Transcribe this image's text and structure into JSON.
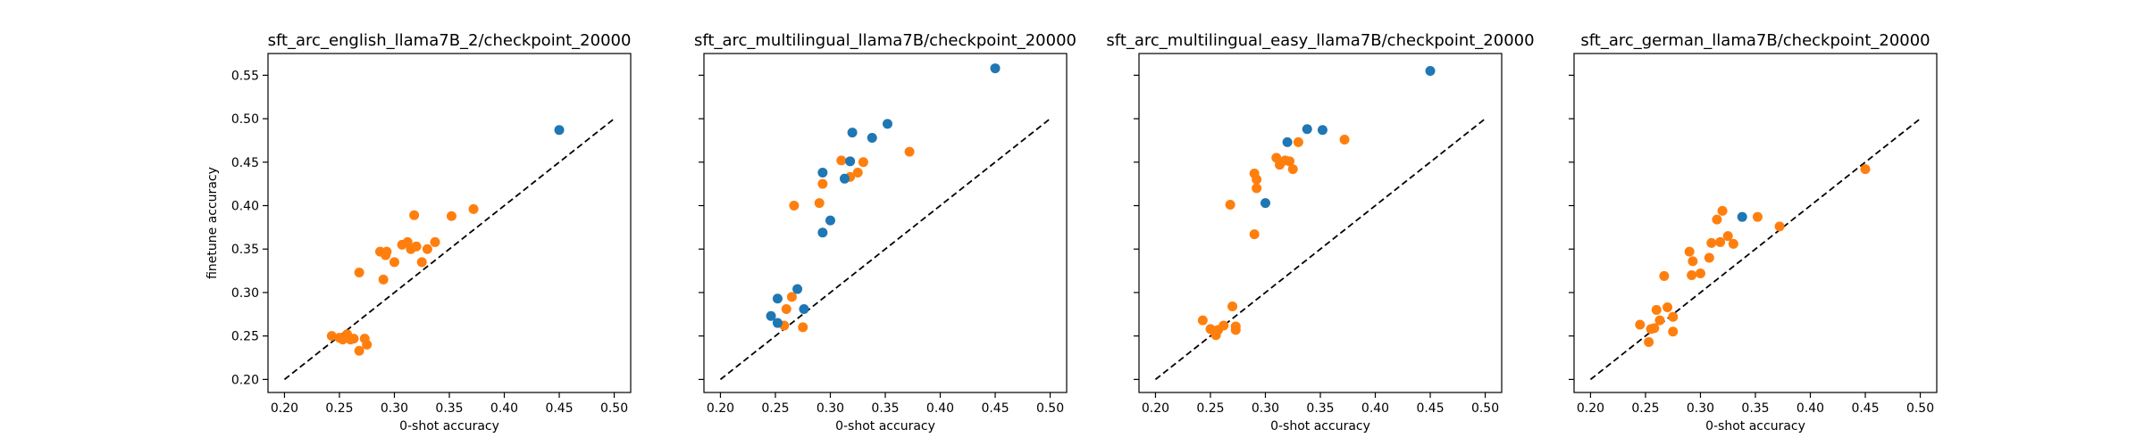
{
  "chart_data": [
    {
      "type": "scatter",
      "title": "sft_arc_english_llama7B_2/checkpoint_20000",
      "xlabel": "0-shot accuracy",
      "ylabel": "finetune accuracy",
      "xlim": [
        0.185,
        0.515
      ],
      "ylim": [
        0.185,
        0.575
      ],
      "xticks": [
        "0.20",
        "0.25",
        "0.30",
        "0.35",
        "0.40",
        "0.45",
        "0.50"
      ],
      "yticks": [
        "0.20",
        "0.25",
        "0.30",
        "0.35",
        "0.40",
        "0.45",
        "0.50",
        "0.55"
      ],
      "reference_line": [
        [
          0.2,
          0.2
        ],
        [
          0.5,
          0.5
        ]
      ],
      "series": [
        {
          "color": "#1f77b4",
          "points": [
            [
              0.45,
              0.487
            ]
          ]
        },
        {
          "color": "#ff7f0e",
          "points": [
            [
              0.243,
              0.25
            ],
            [
              0.25,
              0.248
            ],
            [
              0.253,
              0.246
            ],
            [
              0.257,
              0.252
            ],
            [
              0.26,
              0.246
            ],
            [
              0.263,
              0.247
            ],
            [
              0.268,
              0.323
            ],
            [
              0.268,
              0.233
            ],
            [
              0.273,
              0.247
            ],
            [
              0.275,
              0.24
            ],
            [
              0.287,
              0.347
            ],
            [
              0.29,
              0.315
            ],
            [
              0.292,
              0.343
            ],
            [
              0.293,
              0.347
            ],
            [
              0.3,
              0.335
            ],
            [
              0.307,
              0.355
            ],
            [
              0.312,
              0.358
            ],
            [
              0.315,
              0.35
            ],
            [
              0.318,
              0.389
            ],
            [
              0.32,
              0.353
            ],
            [
              0.325,
              0.335
            ],
            [
              0.33,
              0.35
            ],
            [
              0.337,
              0.358
            ],
            [
              0.352,
              0.388
            ],
            [
              0.372,
              0.396
            ]
          ]
        }
      ]
    },
    {
      "type": "scatter",
      "title": "sft_arc_multilingual_llama7B/checkpoint_20000",
      "xlabel": "0-shot accuracy",
      "ylabel": "",
      "xlim": [
        0.185,
        0.515
      ],
      "ylim": [
        0.185,
        0.575
      ],
      "xticks": [
        "0.20",
        "0.25",
        "0.30",
        "0.35",
        "0.40",
        "0.45",
        "0.50"
      ],
      "yticks": [
        "0.20",
        "0.25",
        "0.30",
        "0.35",
        "0.40",
        "0.45",
        "0.50",
        "0.55"
      ],
      "reference_line": [
        [
          0.2,
          0.2
        ],
        [
          0.5,
          0.5
        ]
      ],
      "series": [
        {
          "color": "#1f77b4",
          "points": [
            [
              0.45,
              0.558
            ],
            [
              0.352,
              0.494
            ],
            [
              0.338,
              0.478
            ],
            [
              0.32,
              0.484
            ],
            [
              0.318,
              0.451
            ],
            [
              0.313,
              0.431
            ],
            [
              0.3,
              0.383
            ],
            [
              0.293,
              0.369
            ],
            [
              0.293,
              0.438
            ],
            [
              0.276,
              0.281
            ],
            [
              0.27,
              0.304
            ],
            [
              0.252,
              0.293
            ],
            [
              0.246,
              0.273
            ],
            [
              0.252,
              0.265
            ]
          ]
        },
        {
          "color": "#ff7f0e",
          "points": [
            [
              0.372,
              0.462
            ],
            [
              0.33,
              0.45
            ],
            [
              0.325,
              0.438
            ],
            [
              0.318,
              0.433
            ],
            [
              0.31,
              0.452
            ],
            [
              0.293,
              0.425
            ],
            [
              0.29,
              0.403
            ],
            [
              0.267,
              0.4
            ],
            [
              0.265,
              0.295
            ],
            [
              0.26,
              0.281
            ],
            [
              0.258,
              0.262
            ],
            [
              0.275,
              0.26
            ]
          ]
        }
      ]
    },
    {
      "type": "scatter",
      "title": "sft_arc_multilingual_easy_llama7B/checkpoint_20000",
      "xlabel": "0-shot accuracy",
      "ylabel": "",
      "xlim": [
        0.185,
        0.515
      ],
      "ylim": [
        0.185,
        0.575
      ],
      "xticks": [
        "0.20",
        "0.25",
        "0.30",
        "0.35",
        "0.40",
        "0.45",
        "0.50"
      ],
      "yticks": [
        "0.20",
        "0.25",
        "0.30",
        "0.35",
        "0.40",
        "0.45",
        "0.50",
        "0.55"
      ],
      "reference_line": [
        [
          0.2,
          0.2
        ],
        [
          0.5,
          0.5
        ]
      ],
      "series": [
        {
          "color": "#1f77b4",
          "points": [
            [
              0.45,
              0.555
            ],
            [
              0.352,
              0.487
            ],
            [
              0.338,
              0.488
            ],
            [
              0.32,
              0.473
            ],
            [
              0.3,
              0.403
            ]
          ]
        },
        {
          "color": "#ff7f0e",
          "points": [
            [
              0.372,
              0.476
            ],
            [
              0.33,
              0.473
            ],
            [
              0.325,
              0.442
            ],
            [
              0.322,
              0.451
            ],
            [
              0.318,
              0.452
            ],
            [
              0.313,
              0.447
            ],
            [
              0.31,
              0.455
            ],
            [
              0.29,
              0.437
            ],
            [
              0.292,
              0.43
            ],
            [
              0.292,
              0.42
            ],
            [
              0.29,
              0.367
            ],
            [
              0.268,
              0.401
            ],
            [
              0.27,
              0.284
            ],
            [
              0.273,
              0.261
            ],
            [
              0.273,
              0.257
            ],
            [
              0.262,
              0.262
            ],
            [
              0.257,
              0.257
            ],
            [
              0.253,
              0.256
            ],
            [
              0.255,
              0.251
            ],
            [
              0.25,
              0.258
            ],
            [
              0.243,
              0.268
            ]
          ]
        }
      ]
    },
    {
      "type": "scatter",
      "title": "sft_arc_german_llama7B/checkpoint_20000",
      "xlabel": "0-shot accuracy",
      "ylabel": "",
      "xlim": [
        0.185,
        0.515
      ],
      "ylim": [
        0.185,
        0.575
      ],
      "xticks": [
        "0.20",
        "0.25",
        "0.30",
        "0.35",
        "0.40",
        "0.45",
        "0.50"
      ],
      "yticks": [
        "0.20",
        "0.25",
        "0.30",
        "0.35",
        "0.40",
        "0.45",
        "0.50",
        "0.55"
      ],
      "reference_line": [
        [
          0.2,
          0.2
        ],
        [
          0.5,
          0.5
        ]
      ],
      "series": [
        {
          "color": "#1f77b4",
          "points": [
            [
              0.338,
              0.387
            ]
          ]
        },
        {
          "color": "#ff7f0e",
          "points": [
            [
              0.45,
              0.442
            ],
            [
              0.372,
              0.376
            ],
            [
              0.352,
              0.387
            ],
            [
              0.33,
              0.356
            ],
            [
              0.325,
              0.365
            ],
            [
              0.32,
              0.394
            ],
            [
              0.318,
              0.358
            ],
            [
              0.315,
              0.384
            ],
            [
              0.31,
              0.357
            ],
            [
              0.308,
              0.34
            ],
            [
              0.3,
              0.322
            ],
            [
              0.293,
              0.336
            ],
            [
              0.292,
              0.32
            ],
            [
              0.29,
              0.347
            ],
            [
              0.275,
              0.255
            ],
            [
              0.275,
              0.272
            ],
            [
              0.27,
              0.283
            ],
            [
              0.267,
              0.319
            ],
            [
              0.263,
              0.268
            ],
            [
              0.26,
              0.28
            ],
            [
              0.258,
              0.259
            ],
            [
              0.255,
              0.258
            ],
            [
              0.253,
              0.243
            ],
            [
              0.245,
              0.263
            ]
          ]
        }
      ]
    }
  ]
}
